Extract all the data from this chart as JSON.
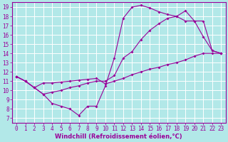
{
  "xlabel": "Windchill (Refroidissement éolien,°C)",
  "bg_color": "#b2e8e8",
  "line_color": "#990099",
  "grid_color": "#ffffff",
  "xlim": [
    -0.5,
    23.5
  ],
  "ylim": [
    6.5,
    19.5
  ],
  "xticks": [
    0,
    1,
    2,
    3,
    4,
    5,
    6,
    7,
    8,
    9,
    10,
    11,
    12,
    13,
    14,
    15,
    16,
    17,
    18,
    19,
    20,
    21,
    22,
    23
  ],
  "yticks": [
    7,
    8,
    9,
    10,
    11,
    12,
    13,
    14,
    15,
    16,
    17,
    18,
    19
  ],
  "line1_x": [
    0,
    1,
    2,
    3,
    4,
    5,
    6,
    7,
    8,
    9,
    10,
    11,
    12,
    13,
    14,
    15,
    16,
    17,
    18,
    19,
    20,
    21,
    22,
    23
  ],
  "line1_y": [
    11.5,
    11.0,
    10.3,
    9.6,
    8.6,
    8.3,
    8.0,
    7.3,
    8.3,
    8.3,
    10.5,
    13.5,
    17.8,
    19.0,
    19.2,
    18.9,
    18.5,
    18.2,
    18.0,
    18.6,
    17.5,
    15.8,
    14.3,
    14.0
  ],
  "line2_x": [
    0,
    1,
    2,
    3,
    4,
    5,
    6,
    7,
    8,
    9,
    10,
    11,
    12,
    13,
    14,
    15,
    16,
    17,
    18,
    19,
    20,
    21,
    22,
    23
  ],
  "line2_y": [
    11.5,
    11.0,
    10.3,
    10.8,
    10.8,
    10.9,
    11.0,
    11.1,
    11.2,
    11.3,
    10.7,
    11.0,
    11.3,
    11.7,
    12.0,
    12.3,
    12.5,
    12.8,
    13.0,
    13.3,
    13.7,
    14.0,
    14.0,
    14.0
  ],
  "line3_x": [
    0,
    1,
    2,
    3,
    4,
    5,
    6,
    7,
    8,
    9,
    10,
    11,
    12,
    13,
    14,
    15,
    16,
    17,
    18,
    19,
    20,
    21,
    22,
    23
  ],
  "line3_y": [
    11.5,
    11.0,
    10.3,
    9.6,
    9.8,
    10.0,
    10.3,
    10.5,
    10.8,
    11.0,
    11.0,
    11.6,
    13.5,
    14.2,
    15.5,
    16.5,
    17.2,
    17.8,
    18.0,
    17.5,
    17.5,
    17.5,
    14.3,
    14.0
  ],
  "tick_fontsize": 5.5,
  "xlabel_fontsize": 6.0
}
